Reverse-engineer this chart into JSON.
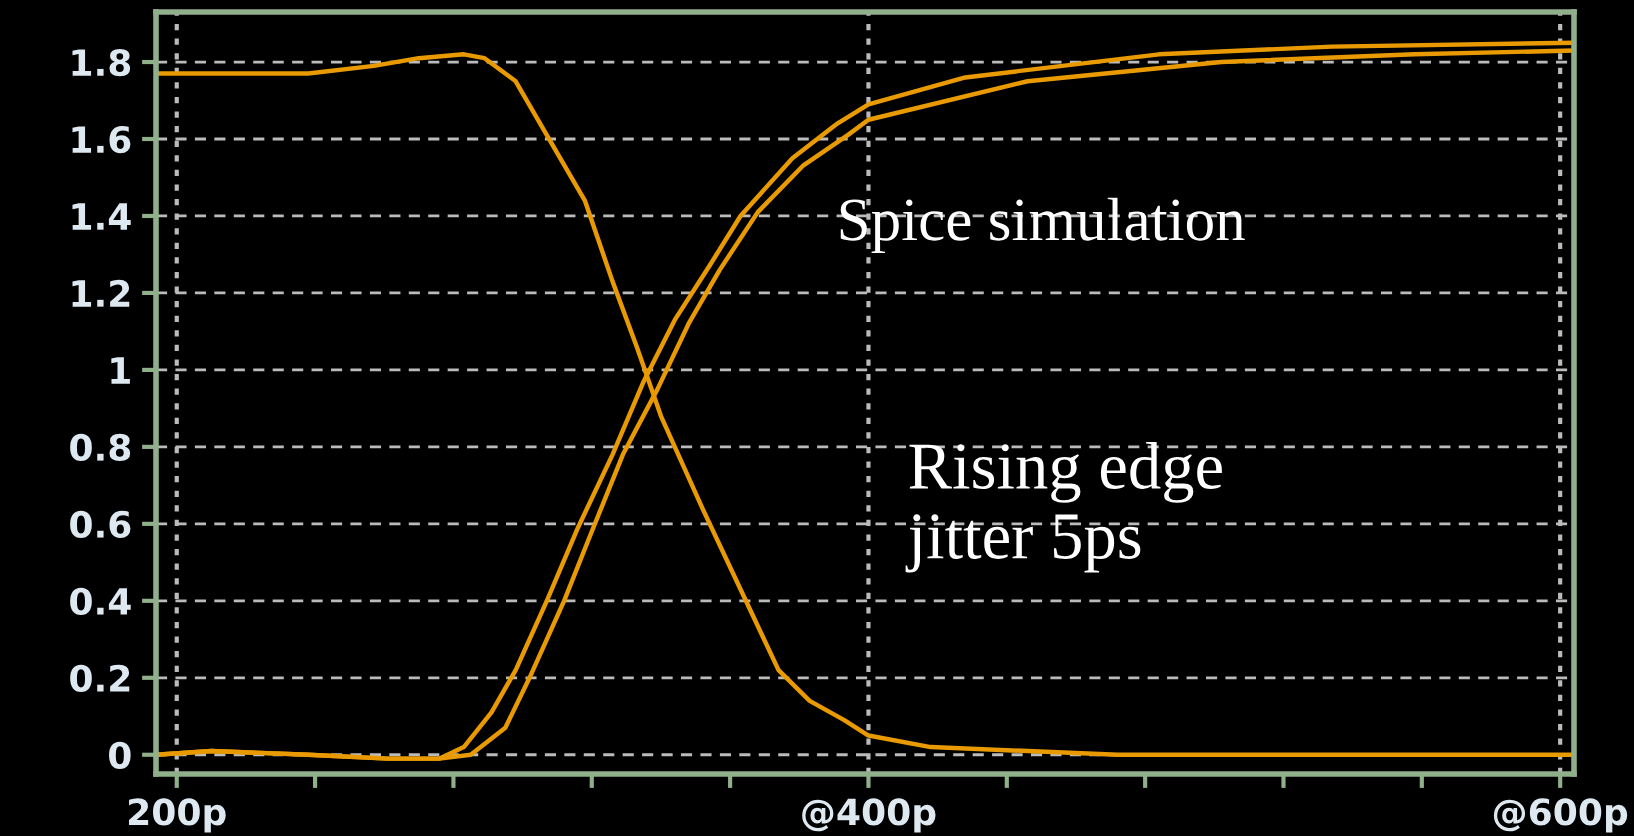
{
  "chart_data": {
    "type": "line",
    "xlim": [
      194,
      604
    ],
    "ylim": [
      -0.05,
      1.93
    ],
    "xticks": [
      {
        "value": 200,
        "label": "200p"
      },
      {
        "value": 240,
        "label": null
      },
      {
        "value": 280,
        "label": null
      },
      {
        "value": 320,
        "label": null
      },
      {
        "value": 360,
        "label": null
      },
      {
        "value": 400,
        "label": "@400p"
      },
      {
        "value": 440,
        "label": null
      },
      {
        "value": 480,
        "label": null
      },
      {
        "value": 520,
        "label": null
      },
      {
        "value": 560,
        "label": null
      },
      {
        "value": 600,
        "label": "@600p"
      }
    ],
    "yticks": [
      0,
      0.2,
      0.4,
      0.6,
      0.8,
      1,
      1.2,
      1.4,
      1.6,
      1.8
    ],
    "grid": true,
    "legend": false,
    "marker": "none",
    "line_style": "solid",
    "annotations": [
      "Spice simulation",
      "Rising edge\njitter 5ps"
    ],
    "series": [
      {
        "color": "#e89a00",
        "x": [
          194,
          238,
          257,
          270,
          283,
          289,
          298,
          307,
          318,
          326,
          333,
          340,
          352,
          363,
          374,
          383,
          393,
          400,
          418,
          472,
          604
        ],
        "values": [
          1.77,
          1.77,
          1.79,
          1.81,
          1.82,
          1.81,
          1.75,
          1.61,
          1.44,
          1.23,
          1.06,
          0.88,
          0.64,
          0.43,
          0.22,
          0.14,
          0.09,
          0.05,
          0.02,
          0,
          0
        ]
      },
      {
        "color": "#e89a00",
        "x": [
          194,
          210,
          238,
          261,
          276,
          283,
          291,
          298,
          307,
          316,
          326,
          335,
          344,
          354,
          363,
          378,
          391,
          400,
          428,
          484,
          534,
          604
        ],
        "values": [
          0,
          0.01,
          0,
          -0.01,
          -0.01,
          0.02,
          0.11,
          0.22,
          0.4,
          0.59,
          0.78,
          0.97,
          1.13,
          1.27,
          1.4,
          1.55,
          1.64,
          1.69,
          1.76,
          1.82,
          1.84,
          1.85
        ]
      },
      {
        "color": "#e89a00",
        "x": [
          194,
          210,
          238,
          261,
          276,
          285,
          295,
          302,
          312,
          320,
          329,
          339,
          348,
          357,
          368,
          381,
          394,
          400,
          446,
          502,
          558,
          604
        ],
        "values": [
          0,
          0.01,
          0,
          -0.01,
          -0.01,
          0,
          0.07,
          0.2,
          0.4,
          0.58,
          0.78,
          0.95,
          1.12,
          1.26,
          1.41,
          1.53,
          1.61,
          1.65,
          1.75,
          1.8,
          1.82,
          1.83
        ]
      }
    ]
  }
}
